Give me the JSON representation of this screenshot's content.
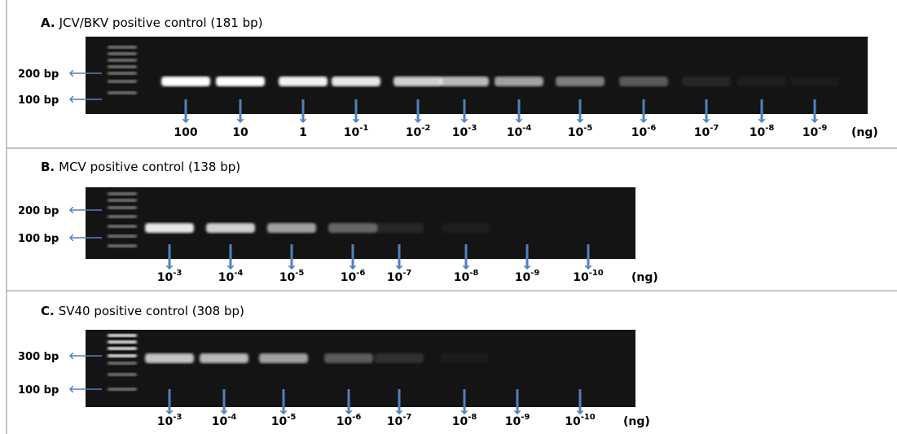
{
  "panels": [
    {
      "letter": "A.",
      "title": "JCV/BKV positive control (181 bp)",
      "markers": [
        "200 bp",
        "100 bp"
      ],
      "lanes": [
        {
          "base": "100"
        },
        {
          "base": "10"
        },
        {
          "base": "1"
        },
        {
          "base": "10",
          "exp": "-1"
        },
        {
          "base": "10",
          "exp": "-2"
        },
        {
          "base": "10",
          "exp": "-3"
        },
        {
          "base": "10",
          "exp": "-4"
        },
        {
          "base": "10",
          "exp": "-5"
        },
        {
          "base": "10",
          "exp": "-6"
        },
        {
          "base": "10",
          "exp": "-7"
        },
        {
          "base": "10",
          "exp": "-8"
        },
        {
          "base": "10",
          "exp": "-9"
        }
      ],
      "unit": "(ng)"
    },
    {
      "letter": "B.",
      "title": "MCV positive control (138 bp)",
      "markers": [
        "200 bp",
        "100 bp"
      ],
      "lanes": [
        {
          "base": "10",
          "exp": "-3"
        },
        {
          "base": "10",
          "exp": "-4"
        },
        {
          "base": "10",
          "exp": "-5"
        },
        {
          "base": "10",
          "exp": "-6"
        },
        {
          "base": "10",
          "exp": "-7"
        },
        {
          "base": "10",
          "exp": "-8"
        },
        {
          "base": "10",
          "exp": "-9"
        },
        {
          "base": "10",
          "exp": "-10"
        }
      ],
      "unit": "(ng)"
    },
    {
      "letter": "C.",
      "title": "SV40 positive control (308 bp)",
      "markers": [
        "300 bp",
        "100 bp"
      ],
      "lanes": [
        {
          "base": "10",
          "exp": "-3"
        },
        {
          "base": "10",
          "exp": "-4"
        },
        {
          "base": "10",
          "exp": "-5"
        },
        {
          "base": "10",
          "exp": "-6"
        },
        {
          "base": "10",
          "exp": "-7"
        },
        {
          "base": "10",
          "exp": "-8"
        },
        {
          "base": "10",
          "exp": "-9"
        },
        {
          "base": "10",
          "exp": "-10"
        }
      ],
      "unit": "(ng)"
    }
  ]
}
